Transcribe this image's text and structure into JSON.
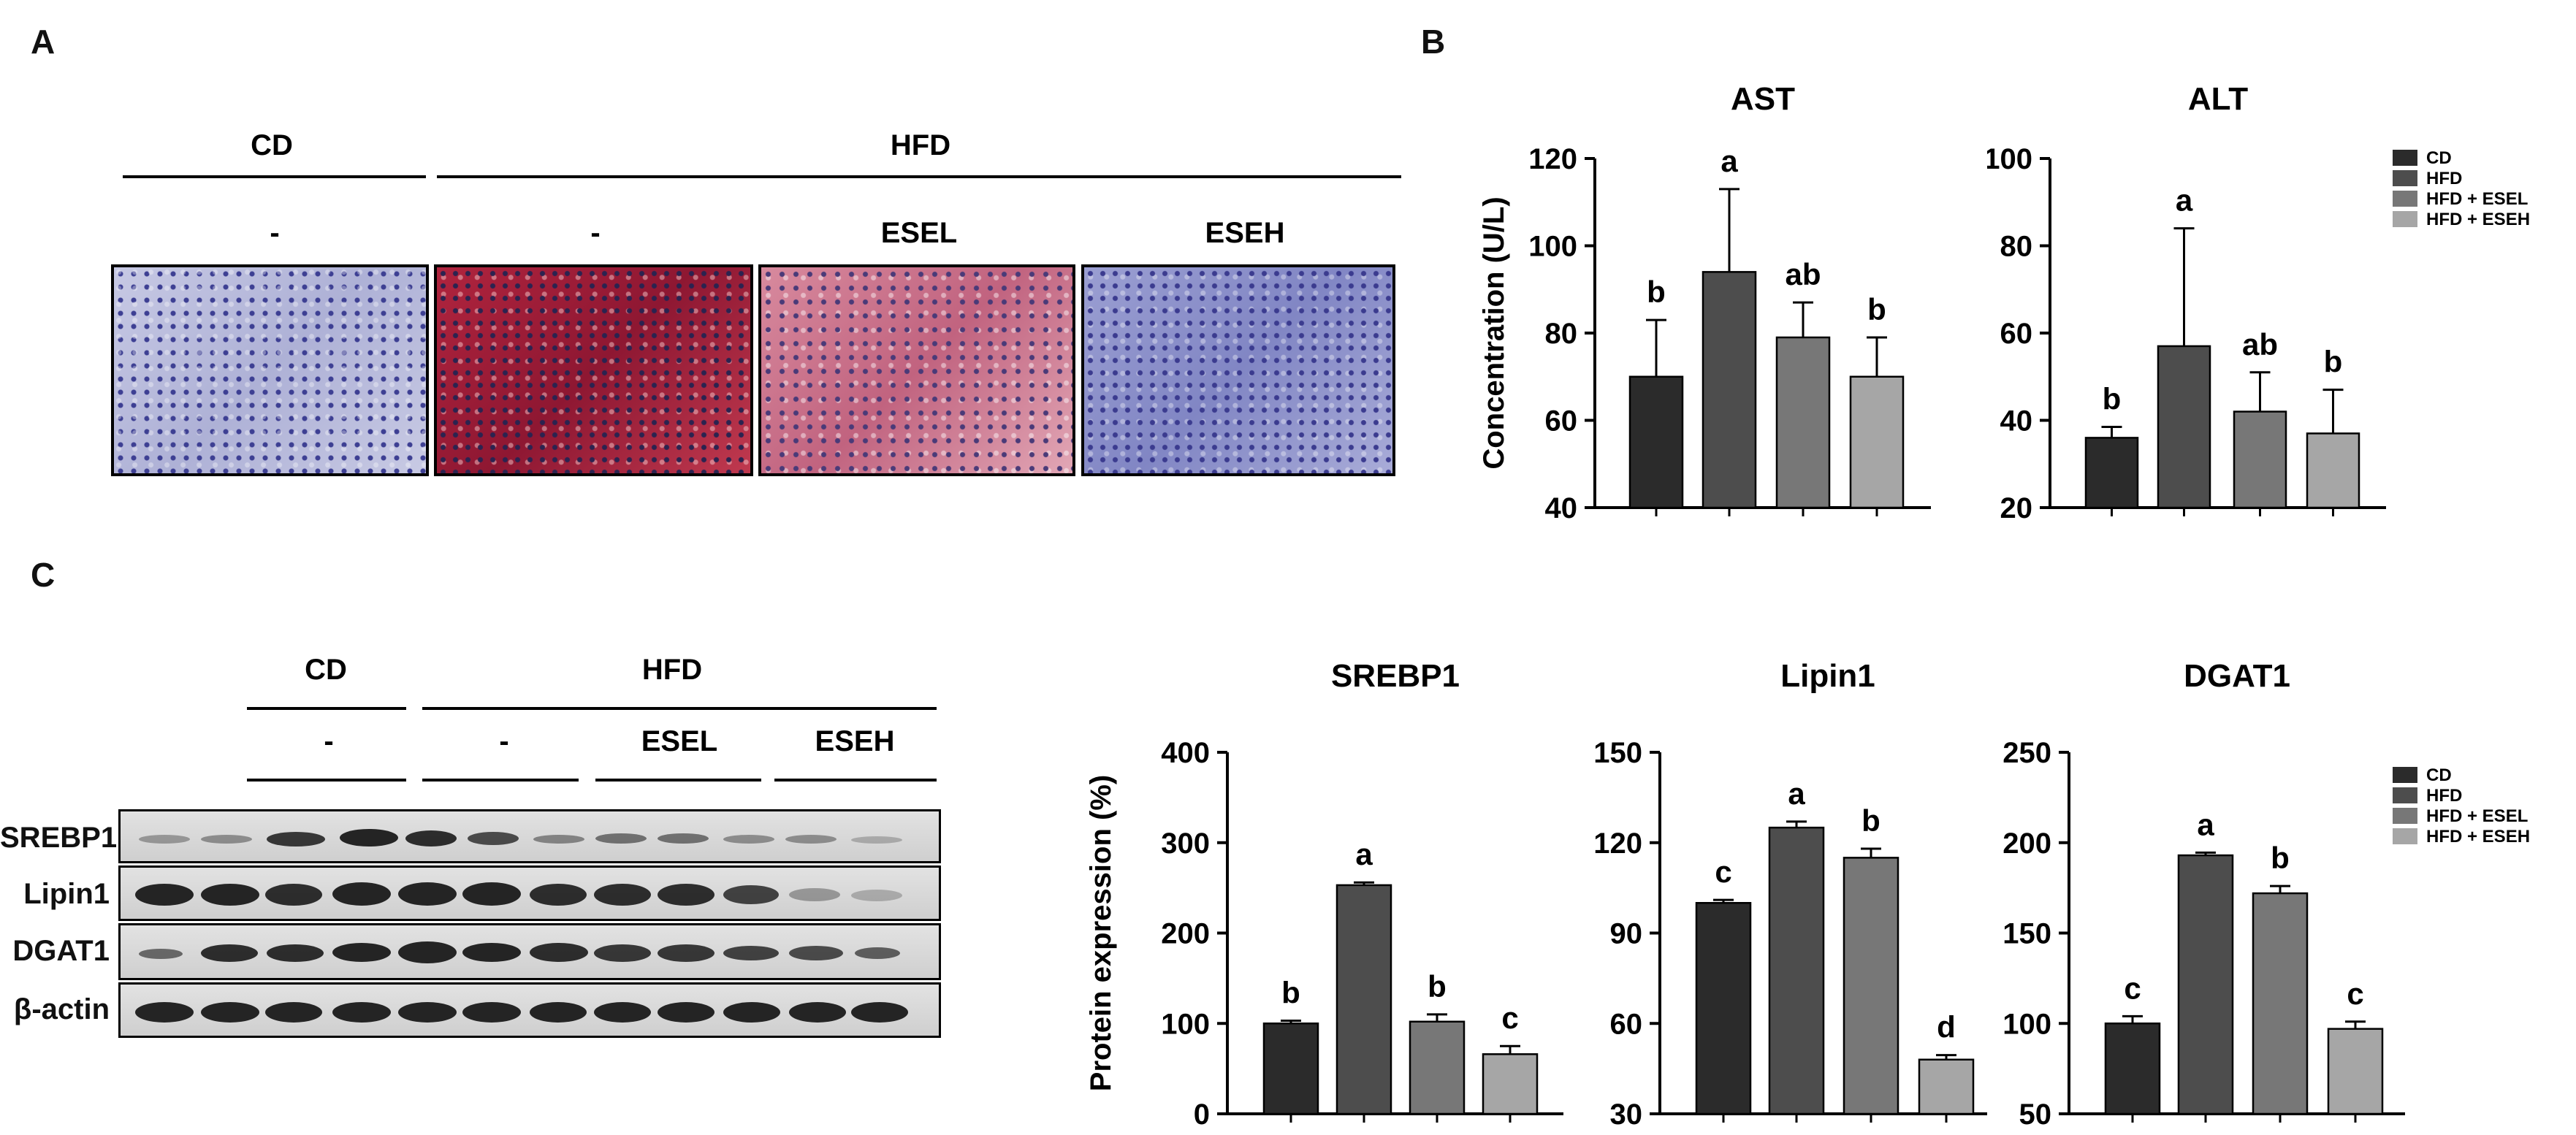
{
  "panel_labels": [
    "A",
    "B",
    "C"
  ],
  "panelA": {
    "group_labels": {
      "cd": "CD",
      "hfd": "HFD"
    },
    "sub_labels": [
      "-",
      "-",
      "ESEL",
      "ESEH"
    ]
  },
  "panelC_blot": {
    "group_labels": {
      "cd": "CD",
      "hfd": "HFD"
    },
    "sub_labels": [
      "-",
      "-",
      "ESEL",
      "ESEH"
    ],
    "rows": [
      "SREBP1",
      "Lipin1",
      "DGAT1",
      "β-actin"
    ]
  },
  "colors": {
    "CD": "#2b2b2b",
    "HFD": "#4d4d4d",
    "HFD + ESEL": "#777777",
    "HFD + ESEH": "#a6a6a6"
  },
  "chart_data": [
    {
      "type": "bar",
      "title": "AST",
      "ylabel": "Concentration (U/L)",
      "categories": [
        "CD",
        "HFD",
        "HFD + ESEL",
        "HFD + ESEH"
      ],
      "values": [
        70,
        94,
        79,
        70
      ],
      "errors": [
        13,
        19,
        8,
        9
      ],
      "letters": [
        "b",
        "a",
        "ab",
        "b"
      ],
      "ylim": [
        40,
        120
      ],
      "ticks": [
        40,
        60,
        80,
        100,
        120
      ],
      "legend": false
    },
    {
      "type": "bar",
      "title": "ALT",
      "ylabel": "",
      "categories": [
        "CD",
        "HFD",
        "HFD + ESEL",
        "HFD + ESEH"
      ],
      "values": [
        36,
        57,
        42,
        37
      ],
      "errors": [
        2.5,
        27,
        9,
        10
      ],
      "letters": [
        "b",
        "a",
        "ab",
        "b"
      ],
      "ylim": [
        20,
        100
      ],
      "ticks": [
        20,
        40,
        60,
        80,
        100
      ],
      "legend": true,
      "legend_entries": [
        "CD",
        "HFD",
        "HFD + ESEL",
        "HFD + ESEH"
      ]
    },
    {
      "type": "bar",
      "title": "SREBP1",
      "ylabel": "Protein expression (%)",
      "categories": [
        "CD",
        "HFD",
        "HFD + ESEL",
        "HFD + ESEH"
      ],
      "values": [
        100,
        253,
        102,
        66
      ],
      "errors": [
        3,
        3,
        8,
        9
      ],
      "letters": [
        "b",
        "a",
        "b",
        "c"
      ],
      "ylim": [
        0,
        400
      ],
      "ticks": [
        0,
        100,
        200,
        300,
        400
      ],
      "legend": false
    },
    {
      "type": "bar",
      "title": "Lipin1",
      "ylabel": "",
      "categories": [
        "CD",
        "HFD",
        "HFD + ESEL",
        "HFD + ESEH"
      ],
      "values": [
        100,
        125,
        115,
        48
      ],
      "errors": [
        1,
        2,
        3,
        1.5
      ],
      "letters": [
        "c",
        "a",
        "b",
        "d"
      ],
      "ylim": [
        30,
        150
      ],
      "ticks": [
        30,
        60,
        90,
        120,
        150
      ],
      "legend": false
    },
    {
      "type": "bar",
      "title": "DGAT1",
      "ylabel": "",
      "categories": [
        "CD",
        "HFD",
        "HFD + ESEL",
        "HFD + ESEH"
      ],
      "values": [
        100,
        193,
        172,
        97
      ],
      "errors": [
        4,
        1.5,
        4,
        4
      ],
      "letters": [
        "c",
        "a",
        "b",
        "c"
      ],
      "ylim": [
        50,
        250
      ],
      "ticks": [
        50,
        100,
        150,
        200,
        250
      ],
      "legend": true,
      "legend_entries": [
        "CD",
        "HFD",
        "HFD + ESEL",
        "HFD + ESEH"
      ]
    }
  ]
}
